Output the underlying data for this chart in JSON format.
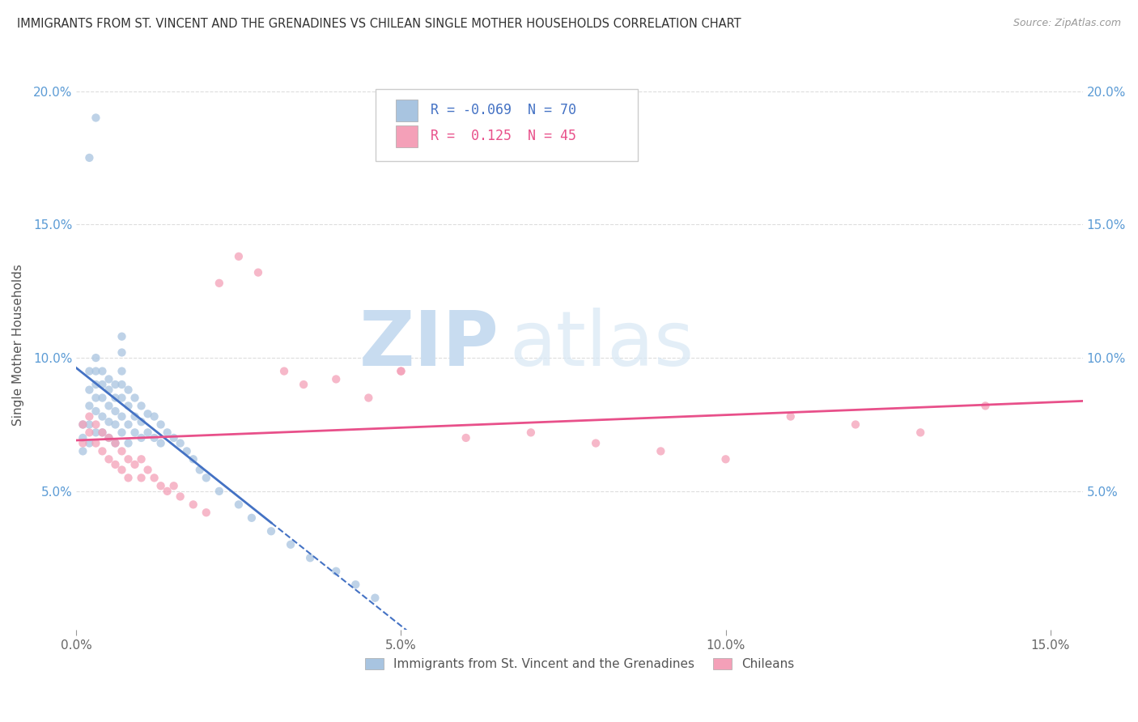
{
  "title": "IMMIGRANTS FROM ST. VINCENT AND THE GRENADINES VS CHILEAN SINGLE MOTHER HOUSEHOLDS CORRELATION CHART",
  "source": "Source: ZipAtlas.com",
  "ylabel": "Single Mother Households",
  "series1_label": "Immigrants from St. Vincent and the Grenadines",
  "series1_color": "#a8c4e0",
  "series1_R": "-0.069",
  "series1_N": 70,
  "series2_label": "Chileans",
  "series2_color": "#f4a0b8",
  "series2_R": "0.125",
  "series2_N": 45,
  "trend1_color": "#4472c4",
  "trend2_color": "#e8508a",
  "watermark_zip": "ZIP",
  "watermark_atlas": "atlas",
  "watermark_color_zip": "#dde8f4",
  "watermark_color_atlas": "#c8d8ee",
  "xlim": [
    0.0,
    0.155
  ],
  "ylim": [
    -0.002,
    0.212
  ],
  "yticks": [
    0.05,
    0.1,
    0.15,
    0.2
  ],
  "ytick_labels": [
    "5.0%",
    "10.0%",
    "15.0%",
    "20.0%"
  ],
  "xticks": [
    0.0,
    0.05,
    0.1,
    0.15
  ],
  "xtick_labels": [
    "0.0%",
    "5.0%",
    "10.0%",
    "15.0%"
  ],
  "s1_x": [
    0.001,
    0.001,
    0.001,
    0.002,
    0.002,
    0.002,
    0.002,
    0.002,
    0.003,
    0.003,
    0.003,
    0.003,
    0.003,
    0.003,
    0.004,
    0.004,
    0.004,
    0.004,
    0.004,
    0.005,
    0.005,
    0.005,
    0.005,
    0.005,
    0.006,
    0.006,
    0.006,
    0.006,
    0.006,
    0.007,
    0.007,
    0.007,
    0.007,
    0.007,
    0.007,
    0.007,
    0.008,
    0.008,
    0.008,
    0.008,
    0.009,
    0.009,
    0.009,
    0.01,
    0.01,
    0.01,
    0.011,
    0.011,
    0.012,
    0.012,
    0.013,
    0.013,
    0.014,
    0.015,
    0.016,
    0.017,
    0.018,
    0.019,
    0.02,
    0.022,
    0.025,
    0.027,
    0.03,
    0.033,
    0.036,
    0.04,
    0.043,
    0.046,
    0.002,
    0.003
  ],
  "s1_y": [
    0.075,
    0.07,
    0.065,
    0.095,
    0.088,
    0.082,
    0.075,
    0.068,
    0.1,
    0.095,
    0.09,
    0.085,
    0.08,
    0.072,
    0.095,
    0.09,
    0.085,
    0.078,
    0.072,
    0.092,
    0.088,
    0.082,
    0.076,
    0.07,
    0.09,
    0.085,
    0.08,
    0.075,
    0.068,
    0.108,
    0.102,
    0.095,
    0.09,
    0.085,
    0.078,
    0.072,
    0.088,
    0.082,
    0.075,
    0.068,
    0.085,
    0.078,
    0.072,
    0.082,
    0.076,
    0.07,
    0.079,
    0.072,
    0.078,
    0.07,
    0.075,
    0.068,
    0.072,
    0.07,
    0.068,
    0.065,
    0.062,
    0.058,
    0.055,
    0.05,
    0.045,
    0.04,
    0.035,
    0.03,
    0.025,
    0.02,
    0.015,
    0.01,
    0.175,
    0.19
  ],
  "s2_x": [
    0.001,
    0.001,
    0.002,
    0.002,
    0.003,
    0.003,
    0.004,
    0.004,
    0.005,
    0.005,
    0.006,
    0.006,
    0.007,
    0.007,
    0.008,
    0.008,
    0.009,
    0.01,
    0.01,
    0.011,
    0.012,
    0.013,
    0.014,
    0.015,
    0.016,
    0.018,
    0.02,
    0.022,
    0.025,
    0.028,
    0.032,
    0.035,
    0.04,
    0.045,
    0.05,
    0.06,
    0.07,
    0.08,
    0.09,
    0.1,
    0.11,
    0.12,
    0.13,
    0.14,
    0.05
  ],
  "s2_y": [
    0.075,
    0.068,
    0.078,
    0.072,
    0.075,
    0.068,
    0.072,
    0.065,
    0.07,
    0.062,
    0.068,
    0.06,
    0.065,
    0.058,
    0.062,
    0.055,
    0.06,
    0.062,
    0.055,
    0.058,
    0.055,
    0.052,
    0.05,
    0.052,
    0.048,
    0.045,
    0.042,
    0.128,
    0.138,
    0.132,
    0.095,
    0.09,
    0.092,
    0.085,
    0.095,
    0.07,
    0.072,
    0.068,
    0.065,
    0.062,
    0.078,
    0.075,
    0.072,
    0.082,
    0.095
  ]
}
